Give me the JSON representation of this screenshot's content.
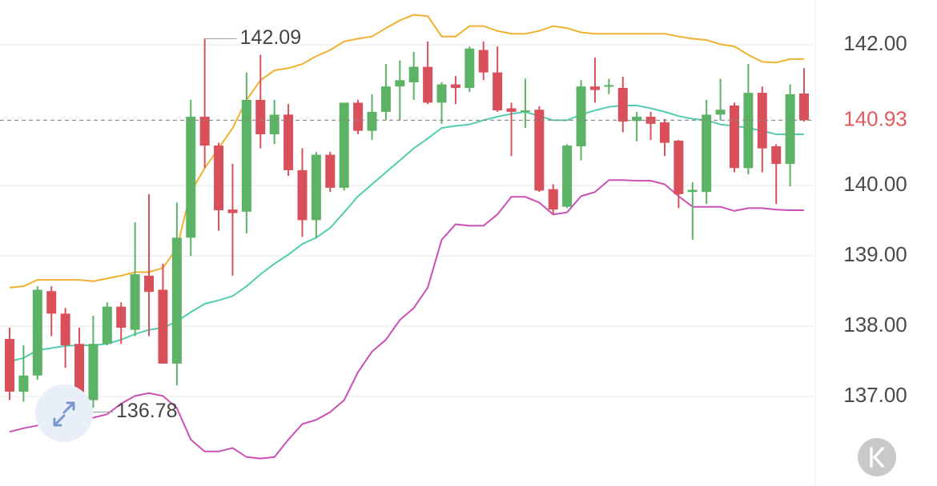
{
  "chart_data": {
    "type": "candlestick",
    "up_color": "#5cb265",
    "down_color": "#d9505a",
    "ylim": [
      135.82,
      142.64
    ],
    "yticks": [
      {
        "value": 137,
        "label": "137.00"
      },
      {
        "value": 138,
        "label": "138.00"
      },
      {
        "value": 139,
        "label": "139.00"
      },
      {
        "value": 140,
        "label": "140.00"
      },
      {
        "value": 142,
        "label": "142.00"
      }
    ],
    "grid": true,
    "last_price": 140.93,
    "high_annotation": 142.09,
    "low_annotation": 136.78,
    "open": [
      137.82,
      137.07,
      137.3,
      138.5,
      138.18,
      137.75,
      136.95,
      137.75,
      138.28,
      137.95,
      138.72,
      138.52,
      137.47,
      139.26,
      140.98,
      140.57,
      139.66,
      139.63,
      141.22,
      140.73,
      141.01,
      140.22,
      139.51,
      140.44,
      139.97,
      141.18,
      140.78,
      141.05,
      141.41,
      141.47,
      141.69,
      141.18,
      141.44,
      141.39,
      141.93,
      141.61,
      141.1,
      141.05,
      141.08,
      139.95,
      139.7,
      140.56,
      141.41,
      141.41,
      141.39,
      140.92,
      140.98,
      140.9,
      140.64,
      139.91,
      139.91,
      141.01,
      141.14,
      140.25,
      141.32,
      140.56,
      140.31,
      141.31
    ],
    "high": [
      137.98,
      137.73,
      138.57,
      138.57,
      138.26,
      137.98,
      138.15,
      138.34,
      138.34,
      139.48,
      139.88,
      138.89,
      139.76,
      141.22,
      142.09,
      140.61,
      140.31,
      141.61,
      141.86,
      141.22,
      141.16,
      140.53,
      140.48,
      140.48,
      141.18,
      141.22,
      141.3,
      141.73,
      141.78,
      141.9,
      142.05,
      141.47,
      141.56,
      141.98,
      142.05,
      141.98,
      141.18,
      141.52,
      141.13,
      140.02,
      140.59,
      141.5,
      141.82,
      141.52,
      141.55,
      141.05,
      141.05,
      140.95,
      140.65,
      140.05,
      141.22,
      141.52,
      141.18,
      141.73,
      141.41,
      140.59,
      141.44,
      141.67
    ],
    "low": [
      136.95,
      136.93,
      137.24,
      137.86,
      137.41,
      136.78,
      136.84,
      137.73,
      137.75,
      137.86,
      137.86,
      137.47,
      137.16,
      139.0,
      140.25,
      139.36,
      138.72,
      139.32,
      140.53,
      140.59,
      140.14,
      139.27,
      139.25,
      139.91,
      139.93,
      140.73,
      140.65,
      140.93,
      140.93,
      141.22,
      141.16,
      140.88,
      141.16,
      141.33,
      141.5,
      141.05,
      140.42,
      140.82,
      139.91,
      139.59,
      139.68,
      140.36,
      141.18,
      141.3,
      140.76,
      140.63,
      140.65,
      140.42,
      139.68,
      139.23,
      139.74,
      140.93,
      140.19,
      140.16,
      140.19,
      139.74,
      139.99,
      140.91
    ],
    "close": [
      137.07,
      137.3,
      138.52,
      138.18,
      137.73,
      136.95,
      137.75,
      138.28,
      137.98,
      138.74,
      138.49,
      137.47,
      139.26,
      140.98,
      140.57,
      139.65,
      139.61,
      141.22,
      140.73,
      141.01,
      140.22,
      139.51,
      140.44,
      139.97,
      141.18,
      140.78,
      141.05,
      141.41,
      141.5,
      141.69,
      141.18,
      141.44,
      141.39,
      141.95,
      141.61,
      141.07,
      141.05,
      141.07,
      139.93,
      139.66,
      140.57,
      141.41,
      141.36,
      141.43,
      140.91,
      140.98,
      140.88,
      140.61,
      139.88,
      139.94,
      141.01,
      141.08,
      140.25,
      141.32,
      140.53,
      140.31,
      141.3,
      140.93
    ],
    "overlays": [
      {
        "color": "#f0b130",
        "values": [
          138.55,
          138.57,
          138.66,
          138.66,
          138.66,
          138.66,
          138.64,
          138.68,
          138.72,
          138.77,
          138.77,
          138.83,
          139.11,
          139.91,
          140.25,
          140.53,
          140.82,
          141.22,
          141.5,
          141.64,
          141.67,
          141.73,
          141.84,
          141.93,
          142.05,
          142.09,
          142.12,
          142.24,
          142.35,
          142.43,
          142.41,
          142.12,
          142.12,
          142.27,
          142.27,
          142.2,
          142.16,
          142.16,
          142.2,
          142.27,
          142.24,
          142.18,
          142.16,
          142.16,
          142.16,
          142.16,
          142.16,
          142.16,
          142.12,
          142.09,
          142.07,
          142.01,
          141.98,
          141.86,
          141.76,
          141.75,
          141.8,
          141.8
        ]
      },
      {
        "color": "#52cdb0",
        "values": [
          137.5,
          137.55,
          137.66,
          137.69,
          137.72,
          137.73,
          137.73,
          137.75,
          137.81,
          137.89,
          137.95,
          137.98,
          138.07,
          138.2,
          138.32,
          138.37,
          138.43,
          138.57,
          138.74,
          138.89,
          139.02,
          139.17,
          139.26,
          139.4,
          139.62,
          139.85,
          140.02,
          140.19,
          140.36,
          140.53,
          140.67,
          140.82,
          140.85,
          140.87,
          140.93,
          140.98,
          141.02,
          141.05,
          140.99,
          140.93,
          140.93,
          141.01,
          141.07,
          141.12,
          141.14,
          141.14,
          141.1,
          141.05,
          140.99,
          140.95,
          140.93,
          140.87,
          140.85,
          140.82,
          140.78,
          140.73,
          140.73,
          140.73
        ]
      },
      {
        "color": "#cc4fb5",
        "values": [
          136.5,
          136.55,
          136.59,
          136.67,
          136.7,
          136.7,
          136.7,
          136.75,
          136.9,
          137.01,
          137.05,
          137.01,
          136.84,
          136.39,
          136.22,
          136.22,
          136.27,
          136.14,
          136.12,
          136.14,
          136.39,
          136.61,
          136.67,
          136.78,
          136.95,
          137.35,
          137.64,
          137.81,
          138.09,
          138.26,
          138.55,
          139.23,
          139.45,
          139.43,
          139.43,
          139.59,
          139.84,
          139.84,
          139.76,
          139.59,
          139.62,
          139.85,
          139.91,
          140.08,
          140.08,
          140.07,
          140.07,
          140.02,
          139.85,
          139.7,
          139.7,
          139.7,
          139.64,
          139.68,
          139.68,
          139.66,
          139.65,
          139.65
        ]
      }
    ]
  }
}
